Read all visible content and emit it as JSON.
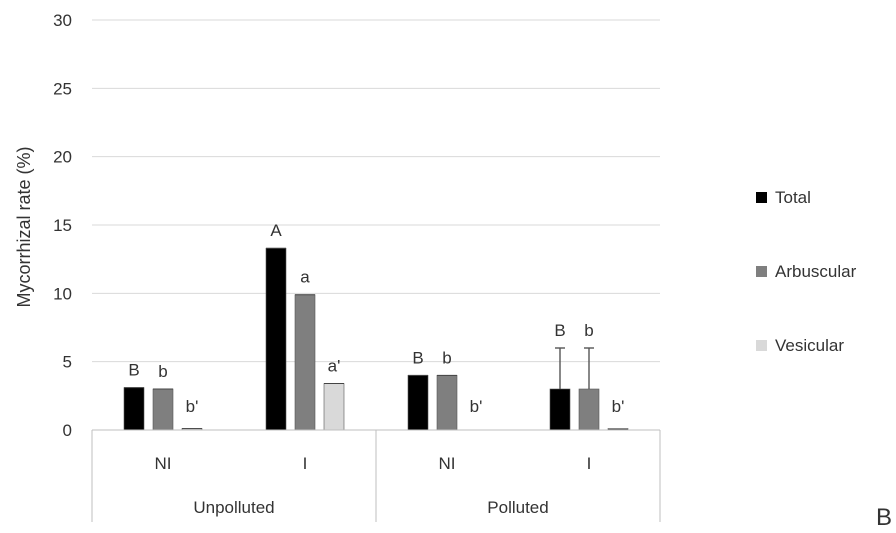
{
  "chart_data": {
    "type": "bar",
    "ylabel": "Mycorrhizal rate (%)",
    "ylim": [
      0,
      30
    ],
    "yticks": [
      0,
      5,
      10,
      15,
      20,
      25,
      30
    ],
    "grid": true,
    "legend_placement": "right",
    "groups": [
      "Unpolluted",
      "Polluted"
    ],
    "categories": [
      "NI",
      "I",
      "NI",
      "I"
    ],
    "category_group": [
      0,
      0,
      1,
      1
    ],
    "series": [
      {
        "name": "Total",
        "color": "#000000",
        "values": [
          3.1,
          13.3,
          4.0,
          3.0
        ],
        "errors": [
          0,
          0,
          0,
          3.0
        ],
        "labels": [
          "B",
          "A",
          "B",
          "B"
        ]
      },
      {
        "name": "Arbuscular",
        "color": "#7f7f7f",
        "values": [
          3.0,
          9.9,
          4.0,
          3.0
        ],
        "errors": [
          0,
          0,
          0,
          3.0
        ],
        "labels": [
          "b",
          "a",
          "b",
          "b"
        ]
      },
      {
        "name": "Vesicular",
        "color": "#d9d9d9",
        "values": [
          0.1,
          3.4,
          0.0,
          0.05
        ],
        "errors": [
          0,
          0,
          0,
          0
        ],
        "labels": [
          "b'",
          "a'",
          "b'",
          "b'"
        ]
      }
    ],
    "corner_letter": "B"
  }
}
